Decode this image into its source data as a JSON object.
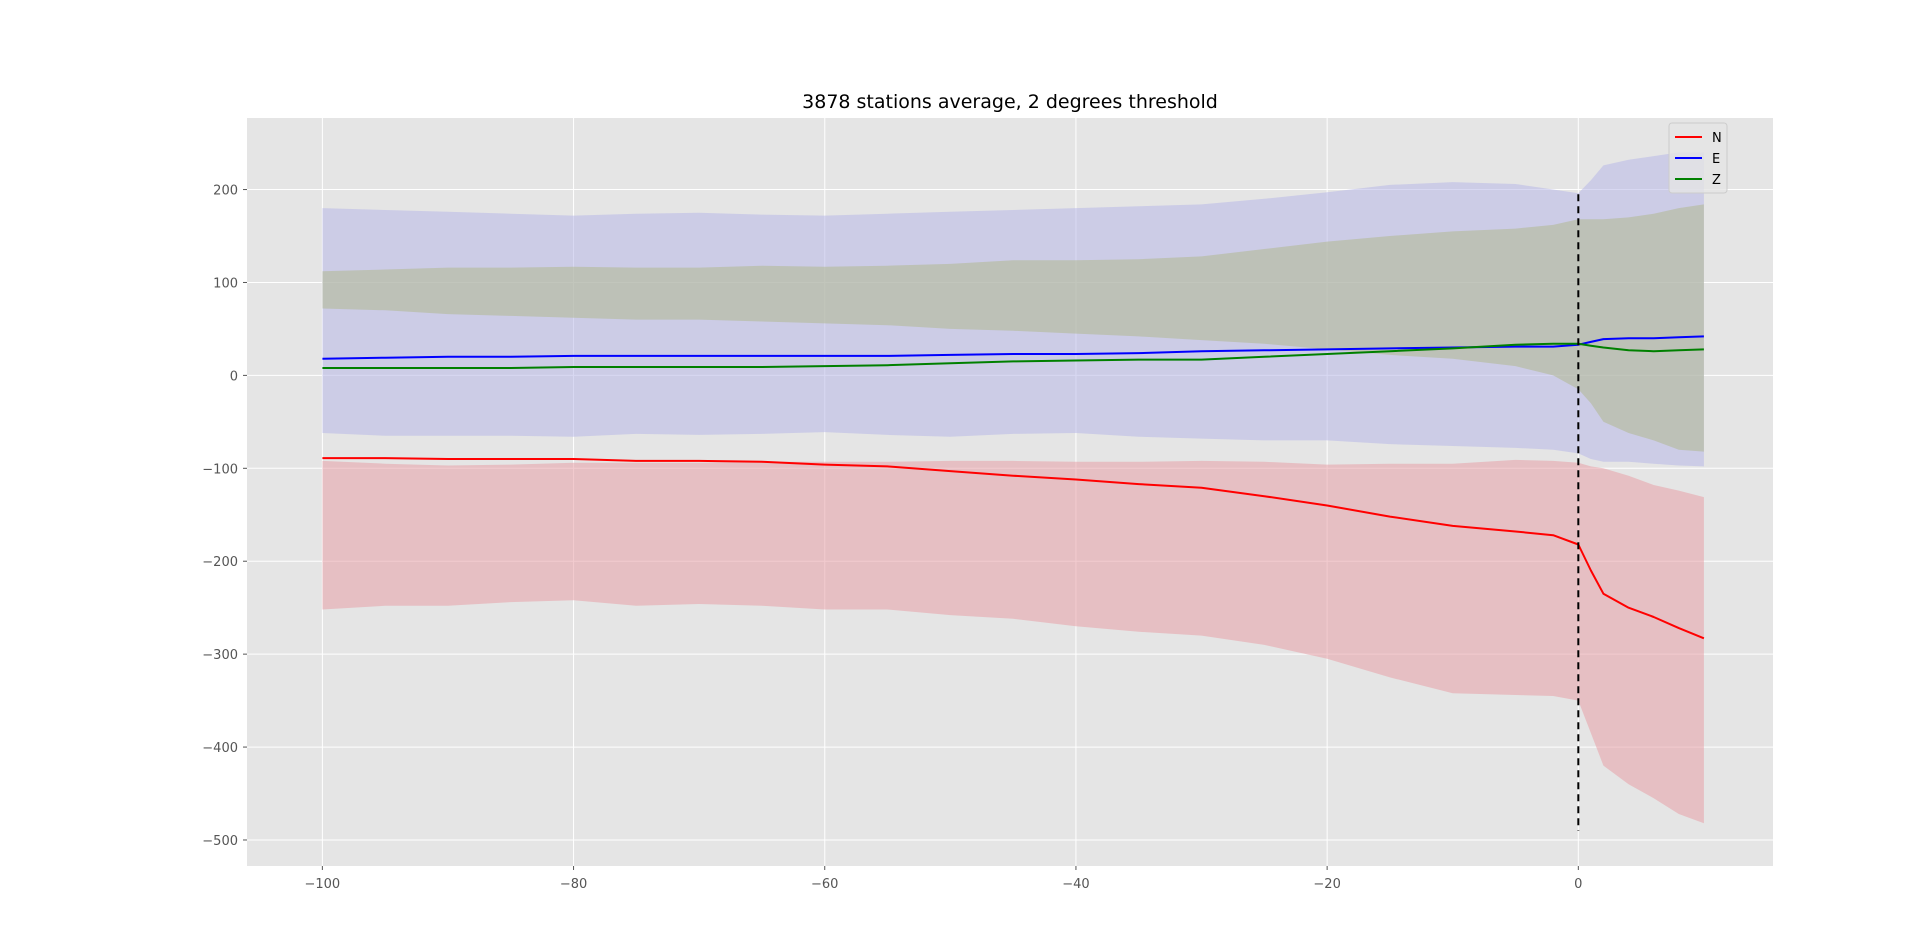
{
  "chart_data": {
    "type": "line",
    "title": "3878 stations average, 2 degrees threshold",
    "xlabel": "",
    "ylabel": "",
    "xlim": [
      -106,
      15.5
    ],
    "ylim": [
      -528,
      277
    ],
    "xticks": [
      -100,
      -80,
      -60,
      -40,
      -20,
      0
    ],
    "xtick_labels": [
      "−100",
      "−80",
      "−60",
      "−40",
      "−20",
      "0"
    ],
    "yticks": [
      200,
      100,
      0,
      -100,
      -200,
      -300,
      -400,
      -500
    ],
    "ytick_labels": [
      "200",
      "100",
      "0",
      "−100",
      "−200",
      "−300",
      "−400",
      "−500"
    ],
    "grid": true,
    "legend_position": "top-right",
    "vline": {
      "x": 0,
      "ymin": -490,
      "ymax": 195,
      "style": "dashed",
      "color": "#000000"
    },
    "x": [
      -100,
      -95,
      -90,
      -85,
      -80,
      -75,
      -70,
      -65,
      -60,
      -55,
      -50,
      -45,
      -40,
      -35,
      -30,
      -25,
      -20,
      -15,
      -10,
      -5,
      -2,
      0,
      1,
      2,
      4,
      6,
      8,
      10
    ],
    "series": [
      {
        "name": "N",
        "color": "#ff0000",
        "band_color": "#e8a0a8",
        "values": [
          -89,
          -89,
          -90,
          -90,
          -90,
          -92,
          -92,
          -93,
          -96,
          -98,
          -103,
          -108,
          -112,
          -117,
          -121,
          -130,
          -140,
          -152,
          -162,
          -168,
          -172,
          -182,
          -210,
          -235,
          -250,
          -260,
          -272,
          -283
        ],
        "lower": [
          -252,
          -248,
          -248,
          -244,
          -242,
          -248,
          -246,
          -248,
          -252,
          -252,
          -258,
          -262,
          -270,
          -276,
          -280,
          -290,
          -305,
          -325,
          -342,
          -344,
          -345,
          -350,
          -385,
          -420,
          -440,
          -455,
          -472,
          -482
        ],
        "upper": [
          -92,
          -95,
          -97,
          -96,
          -94,
          -94,
          -94,
          -93,
          -93,
          -93,
          -92,
          -92,
          -93,
          -93,
          -92,
          -93,
          -96,
          -95,
          -95,
          -91,
          -92,
          -94,
          -98,
          -100,
          -108,
          -118,
          -124,
          -131
        ]
      },
      {
        "name": "E",
        "color": "#0000ff",
        "band_color": "#b8b8e8",
        "values": [
          18,
          19,
          20,
          20,
          21,
          21,
          21,
          21,
          21,
          21,
          22,
          23,
          23,
          24,
          26,
          27,
          28,
          29,
          30,
          31,
          31,
          33,
          36,
          39,
          40,
          40,
          41,
          42
        ],
        "lower": [
          -62,
          -65,
          -65,
          -65,
          -66,
          -63,
          -64,
          -63,
          -61,
          -64,
          -66,
          -63,
          -62,
          -66,
          -68,
          -70,
          -70,
          -74,
          -76,
          -78,
          -80,
          -84,
          -90,
          -93,
          -93,
          -95,
          -97,
          -98
        ],
        "upper": [
          180,
          178,
          176,
          174,
          172,
          174,
          175,
          173,
          172,
          174,
          176,
          178,
          180,
          182,
          184,
          190,
          197,
          205,
          208,
          206,
          200,
          196,
          210,
          226,
          232,
          236,
          240,
          240
        ]
      },
      {
        "name": "Z",
        "color": "#008000",
        "band_color": "#b0b890",
        "values": [
          8,
          8,
          8,
          8,
          9,
          9,
          9,
          9,
          10,
          11,
          13,
          15,
          16,
          17,
          17,
          20,
          23,
          26,
          29,
          33,
          34,
          34,
          32,
          30,
          27,
          26,
          27,
          28
        ],
        "lower": [
          72,
          70,
          66,
          64,
          62,
          60,
          60,
          58,
          56,
          54,
          50,
          48,
          45,
          42,
          38,
          34,
          28,
          22,
          18,
          10,
          0,
          -15,
          -30,
          -50,
          -62,
          -70,
          -80,
          -82
        ],
        "upper": [
          112,
          114,
          116,
          116,
          117,
          116,
          116,
          118,
          117,
          118,
          120,
          124,
          124,
          125,
          128,
          136,
          144,
          150,
          155,
          158,
          162,
          168,
          168,
          168,
          170,
          174,
          180,
          184
        ]
      }
    ]
  }
}
